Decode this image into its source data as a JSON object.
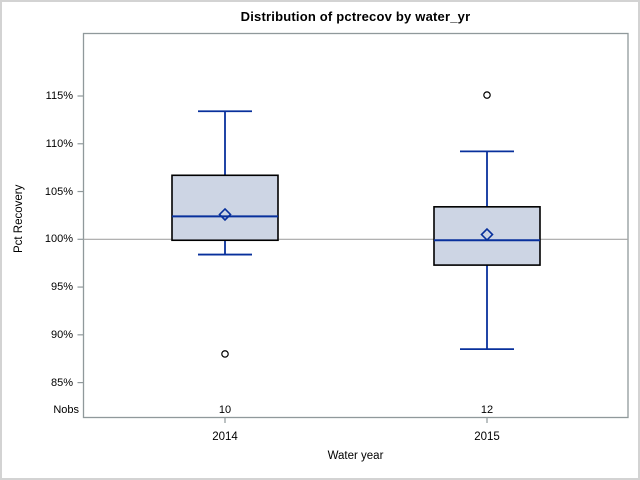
{
  "chart_data": {
    "type": "boxplot",
    "title": "Distribution of pctrecov by water_yr",
    "xlabel": "Water year",
    "ylabel": "Pct Recovery",
    "nobs_label": "Nobs",
    "categories": [
      "2014",
      "2015"
    ],
    "nobs": [
      "10",
      "12"
    ],
    "y_ticks": [
      115,
      110,
      105,
      100,
      95,
      90,
      85
    ],
    "y_tick_labels": [
      "115%",
      "110%",
      "105%",
      "100%",
      "95%",
      "90%",
      "85%"
    ],
    "ylim": [
      81.3,
      121.6
    ],
    "reference_line": 100,
    "grid": "off",
    "legend": "none",
    "series": [
      {
        "category": "2014",
        "nobs": 10,
        "whisker_low": 98.4,
        "q1": 99.9,
        "median": 102.4,
        "mean": 102.6,
        "q3": 106.7,
        "whisker_high": 113.4,
        "outliers": [
          88.0
        ]
      },
      {
        "category": "2015",
        "nobs": 12,
        "whisker_low": 88.5,
        "q1": 97.3,
        "median": 99.9,
        "mean": 100.5,
        "q3": 103.4,
        "whisker_high": 109.2,
        "outliers": [
          115.1
        ]
      }
    ],
    "colors": {
      "box_fill": "#cdd5e4",
      "box_border": "#000000",
      "line_blue": "#08309c",
      "reference_line": "#a6a6a6",
      "axis_gray": "#90999b",
      "outlier": "#000000",
      "figure_border": "#d3d3d3",
      "text": "#000000"
    }
  }
}
